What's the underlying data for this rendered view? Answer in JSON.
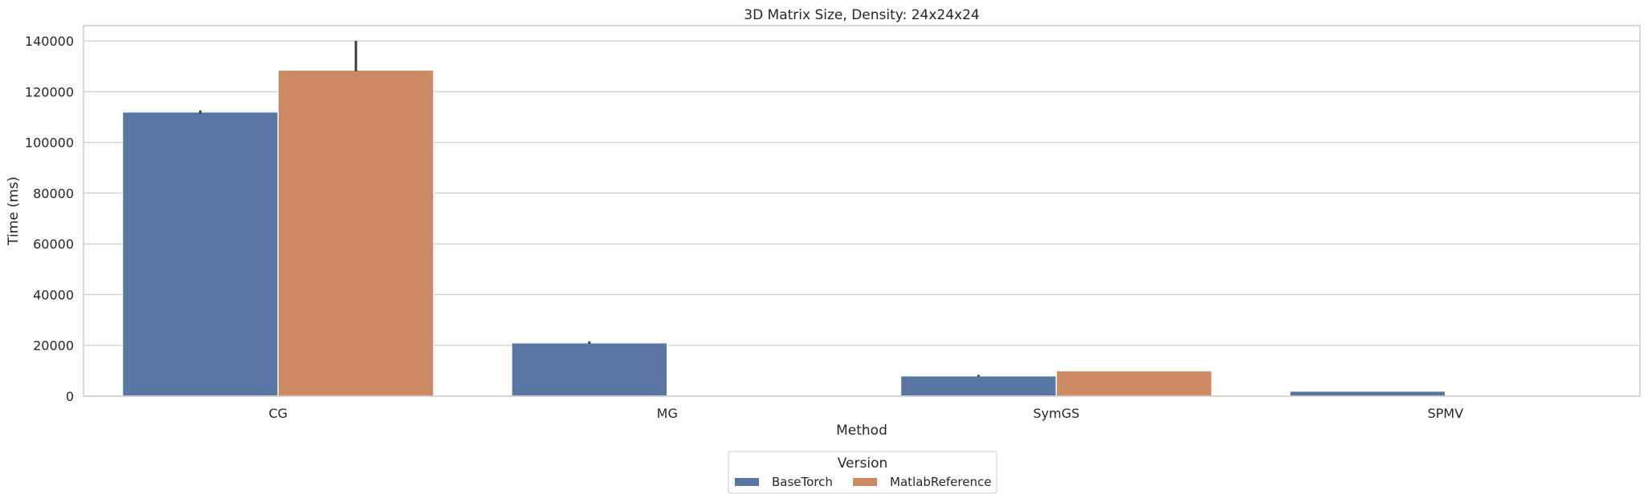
{
  "chart_data": {
    "type": "bar",
    "title": "3D Matrix Size, Density: 24x24x24",
    "xlabel": "Method",
    "ylabel": "Time (ms)",
    "categories": [
      "CG",
      "MG",
      "SymGS",
      "SPMV"
    ],
    "ylim": [
      0,
      146000
    ],
    "yticks": [
      0,
      20000,
      40000,
      60000,
      80000,
      100000,
      120000,
      140000
    ],
    "grid": "horizontal",
    "legend": {
      "title": "Version",
      "placement": "bottom-center, below plot",
      "entries": [
        "BaseTorch",
        "MatlabReference"
      ]
    },
    "series": [
      {
        "name": "BaseTorch",
        "color": "#5875a4",
        "values": [
          112000,
          21000,
          8000,
          2000
        ],
        "error_bars": [
          [
            111400,
            112600
          ],
          [
            20600,
            21600
          ],
          [
            7700,
            8400
          ],
          null
        ]
      },
      {
        "name": "MatlabReference",
        "color": "#cc8963",
        "values": [
          128500,
          null,
          10000,
          null
        ],
        "error_bars": [
          [
            128000,
            140000
          ],
          null,
          null,
          null
        ]
      }
    ]
  }
}
